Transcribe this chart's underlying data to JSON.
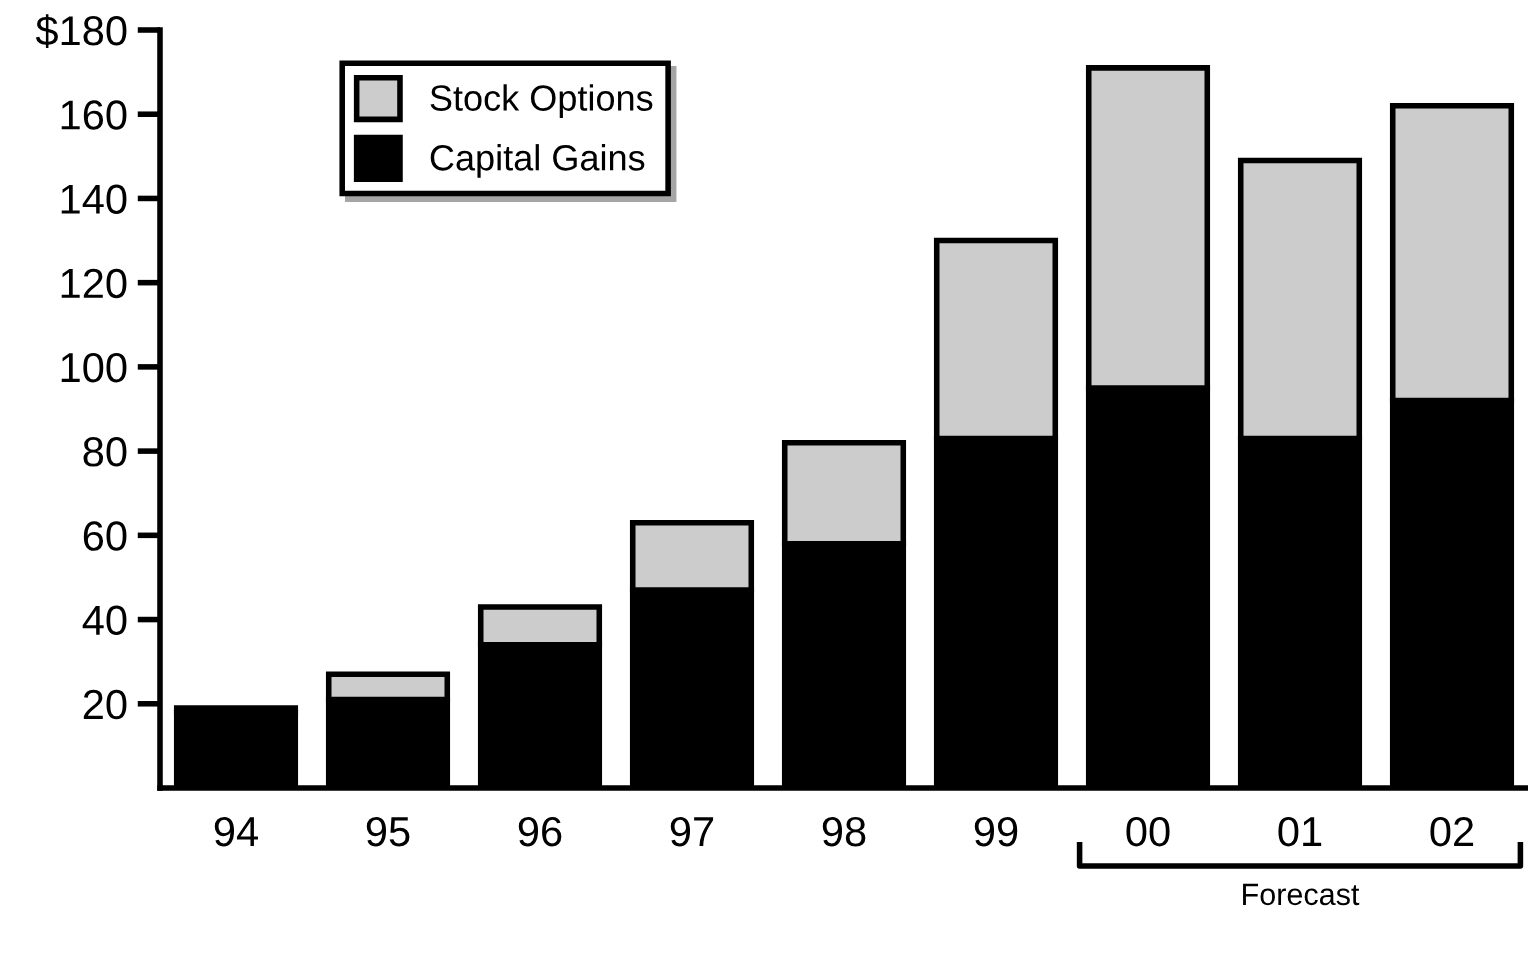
{
  "chart_data": {
    "type": "bar",
    "stacked": true,
    "categories": [
      "94",
      "95",
      "96",
      "97",
      "98",
      "99",
      "00",
      "01",
      "02"
    ],
    "series": [
      {
        "name": "Capital Gains",
        "color": "#000000",
        "values": [
          18,
          21,
          34,
          47,
          58,
          83,
          95,
          83,
          92
        ]
      },
      {
        "name": "Stock Options",
        "color": "#cccccc",
        "values": [
          1,
          6,
          9,
          16,
          24,
          47,
          76,
          66,
          70
        ]
      }
    ],
    "ylim": [
      0,
      180
    ],
    "yticks": [
      20,
      40,
      60,
      80,
      100,
      120,
      140,
      160,
      {
        "value": 180,
        "label": "$180"
      }
    ],
    "grid": false,
    "legend": "top left",
    "annotations": [
      "Forecast"
    ]
  }
}
